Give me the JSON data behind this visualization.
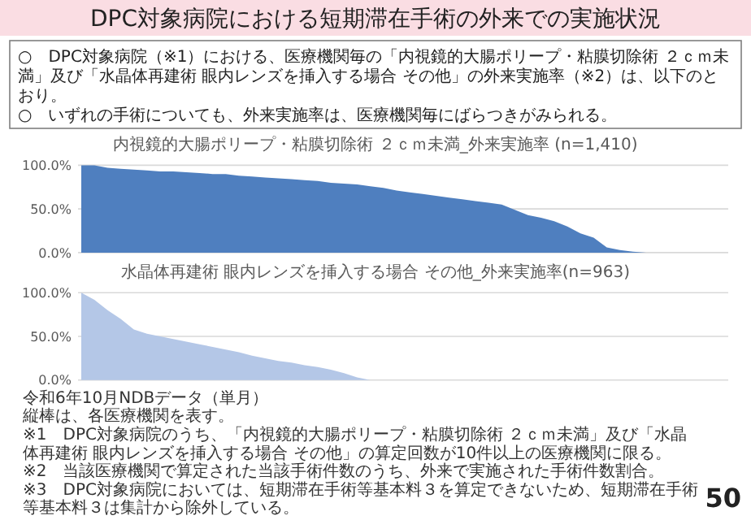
{
  "chart_data": [
    {
      "type": "other",
      "title": "DPC対象病院における短期滞在手術の外来での実施状況",
      "annotations": [
        "○　DPC対象病院（※1）における、医療機関毎の「内視鏡的大腸ポリープ・粘膜切除術 ２ｃｍ未満」及び「水晶体再建術 眼内レンズを挿入する場合 その他」の外来実施率（※2）は、以下のとおり。",
        "○　いずれの手術についても、外来実施率は、医療機関毎にばらつきがみられる。"
      ]
    },
    {
      "type": "area",
      "title": "内視鏡的大腸ポリープ・粘膜切除術 ２ｃｍ未満_外来実施率 (n=1,410)",
      "categories": [
        null,
        null,
        null,
        null,
        null,
        null,
        null,
        null,
        null,
        null,
        null,
        null,
        null,
        null,
        null,
        null,
        null,
        null,
        null,
        null,
        null,
        null,
        null,
        null,
        null,
        null,
        null,
        null,
        null,
        null,
        null,
        null,
        null,
        null,
        null,
        null,
        null,
        null,
        null,
        null,
        null,
        null,
        null,
        null,
        null,
        null,
        null,
        null,
        null,
        null
      ],
      "series": [
        {
          "color": "#4f7fbf",
          "values": [
            100,
            100,
            97,
            96,
            95,
            94,
            93,
            93,
            92,
            91,
            90,
            90,
            88,
            87,
            86,
            85,
            84,
            83,
            82,
            80,
            79,
            78,
            76,
            74,
            71,
            69,
            67,
            65,
            63,
            61,
            59,
            57,
            55,
            49,
            43,
            40,
            36,
            30,
            22,
            17,
            6,
            3,
            1,
            0,
            0,
            0,
            0,
            0,
            0,
            0
          ]
        }
      ],
      "ylim": [
        0,
        105
      ],
      "yticks": [
        {
          "value": 0,
          "label": "0.0%"
        },
        {
          "value": 50,
          "label": "50.0%"
        },
        {
          "value": 100,
          "label": "100.0%"
        }
      ],
      "grid": "y",
      "tick_labels": "y"
    },
    {
      "type": "area",
      "title": "水晶体再建術 眼内レンズを挿入する場合 その他_外来実施率(n=963)",
      "categories": [
        null,
        null,
        null,
        null,
        null,
        null,
        null,
        null,
        null,
        null,
        null,
        null,
        null,
        null,
        null,
        null,
        null,
        null,
        null,
        null,
        null,
        null,
        null,
        null,
        null,
        null,
        null,
        null,
        null,
        null,
        null,
        null,
        null,
        null,
        null,
        null,
        null,
        null,
        null,
        null,
        null,
        null,
        null,
        null,
        null,
        null,
        null,
        null,
        null,
        null
      ],
      "series": [
        {
          "color": "#b4c7e7",
          "values": [
            100,
            92,
            80,
            70,
            58,
            53,
            50,
            47,
            44,
            41,
            38,
            35,
            32,
            28,
            25,
            22,
            20,
            17,
            15,
            12,
            8,
            3,
            0,
            0,
            0,
            0,
            0,
            0,
            0,
            0,
            0,
            0,
            0,
            0,
            0,
            0,
            0,
            0,
            0,
            0,
            0,
            0,
            0,
            0,
            0,
            0,
            0,
            0,
            0,
            0
          ]
        }
      ],
      "ylim": [
        0,
        105
      ],
      "yticks": [
        {
          "value": 0,
          "label": "0.0%"
        },
        {
          "value": 50,
          "label": "50.0%"
        },
        {
          "value": 100,
          "label": "100.0%"
        }
      ],
      "grid": "y",
      "tick_labels": "y",
      "annotations": [
        "令和6年10月NDBデータ（単月）",
        "縦棒は、各医療機関を表す。",
        "※1　DPC対象病院のうち、「内視鏡的大腸ポリープ・粘膜切除術 ２ｃｍ未満」及び「水晶体再建術 眼内レンズを挿入する場合 その他」の算定回数が10件以上の医療機関に限る。",
        "※2　当該医療機関で算定された当該手術件数のうち、外来で実施された手術件数割合。",
        "※3　DPC対象病院においては、短期滞在手術等基本料３を算定できないため、短期滞在手術等基本料３は集計から除外している。",
        "50"
      ]
    }
  ]
}
